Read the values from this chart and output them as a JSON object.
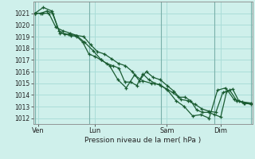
{
  "bg_color": "#cff0eb",
  "grid_color": "#aaddd8",
  "line_color": "#1a5c32",
  "ylabel": "Pression niveau de la mer( hPa )",
  "ylim": [
    1011.5,
    1022.0
  ],
  "yticks": [
    1012,
    1013,
    1014,
    1015,
    1016,
    1017,
    1018,
    1019,
    1020,
    1021
  ],
  "day_labels": [
    "Ven",
    "Lun",
    "Sam",
    "Dim"
  ],
  "series1": [
    1021.0,
    1021.0,
    1021.2,
    1021.0,
    1019.5,
    1019.2,
    1019.1,
    1019.0,
    1018.5,
    1017.5,
    1017.3,
    1017.0,
    1016.7,
    1016.5,
    1016.3,
    1015.1,
    1015.1,
    1014.8,
    1015.8,
    1015.3,
    1015.0,
    1014.8,
    1014.5,
    1014.2,
    1013.8,
    1013.8,
    1013.5,
    1012.7,
    1012.5,
    1012.5,
    1012.3,
    1012.1,
    1014.3,
    1014.5,
    1013.5,
    1013.3,
    1013.3
  ],
  "series2": [
    1021.0,
    1021.0,
    1021.0,
    1019.8,
    1019.5,
    1019.3,
    1019.1,
    1019.0,
    1018.3,
    1017.7,
    1017.5,
    1017.1,
    1016.7,
    1016.5,
    1016.0,
    1015.2,
    1016.0,
    1015.5,
    1015.3,
    1014.8,
    1014.3,
    1013.6,
    1013.5,
    1013.2,
    1012.8,
    1012.6,
    1012.5,
    1014.2,
    1014.4,
    1013.5,
    1013.3,
    1013.2
  ],
  "series3": [
    1021.0,
    1021.5,
    1021.2,
    1019.3,
    1019.2,
    1019.1,
    1018.5,
    1017.8,
    1017.0,
    1016.5,
    1015.3,
    1014.6,
    1015.7,
    1015.2,
    1015.0,
    1014.9,
    1014.4,
    1013.5,
    1013.0,
    1012.2,
    1012.3,
    1012.0,
    1014.4,
    1014.6,
    1013.6,
    1013.4,
    1013.3
  ],
  "num_points": 37,
  "vline_day_x": [
    0,
    9,
    21,
    30,
    36
  ]
}
